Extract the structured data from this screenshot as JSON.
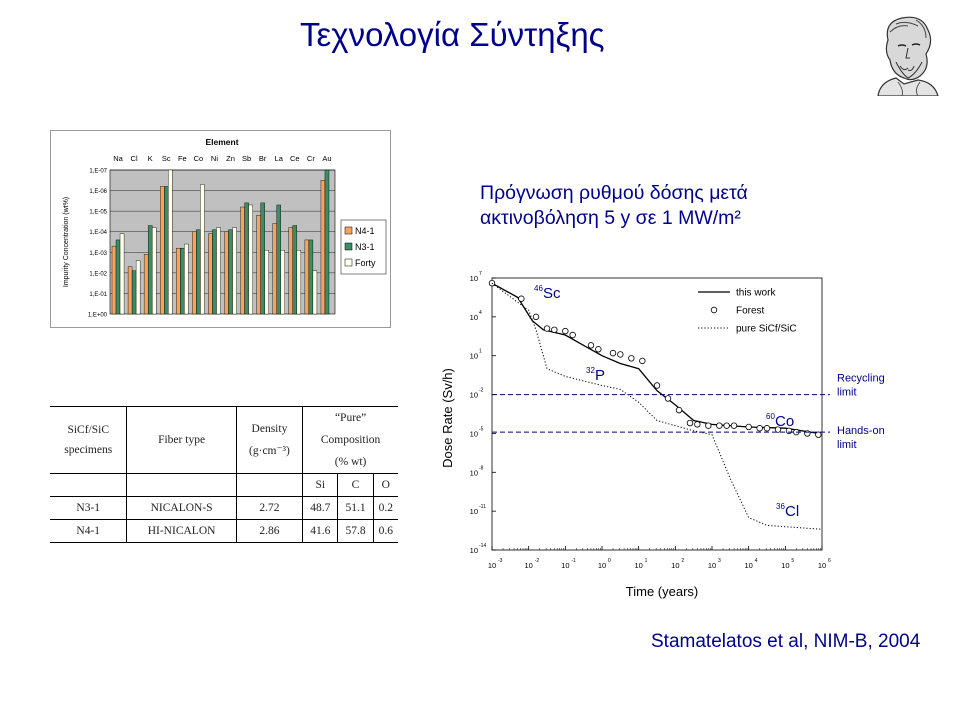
{
  "slide": {
    "title": "Τεχνολογία Σύντηξης",
    "dose_heading_line1": "Πρόγνωση ρυθμού δόσης μετά",
    "dose_heading_line2": "ακτινοβόληση 5 y σε 1 MW/m²",
    "citation": "Stamatelatos et al, NIM-B, 2004"
  },
  "table": {
    "header": {
      "specimens_line1": "SiCf/SiC",
      "specimens_line2": "specimens",
      "fiber_type": "Fiber type",
      "density_line1": "Density",
      "density_line2": "(g·cm⁻³)",
      "composition_line1": "“Pure”",
      "composition_line2": "Composition",
      "composition_line3": "(% wt)",
      "si": "Si",
      "c": "C",
      "o": "O"
    },
    "rows": [
      {
        "specimen": "N3-1",
        "fiber": "NICALON-S",
        "density": "2.72",
        "si": "48.7",
        "c": "51.1",
        "o": "0.2"
      },
      {
        "specimen": "N4-1",
        "fiber": "HI-NICALON",
        "density": "2.86",
        "si": "41.6",
        "c": "57.8",
        "o": "0.6"
      }
    ]
  },
  "chart_data": [
    {
      "type": "bar",
      "title": "Element",
      "ylabel": "Impurity Concentration (wt%)",
      "yscale": "log",
      "ylim_exponent": [
        0,
        7
      ],
      "ytick_labels": [
        "1,E+00",
        "1,E-01",
        "1,E-02",
        "1,E-03",
        "1,E-04",
        "1,E-05",
        "1,E-06",
        "1,E-07"
      ],
      "categories": [
        "Na",
        "Cl",
        "K",
        "Sc",
        "Fe",
        "Co",
        "Ni",
        "Zn",
        "Sb",
        "Br",
        "La",
        "Ce",
        "Cr",
        "Au"
      ],
      "series": [
        {
          "name": "N4-1",
          "color": "#F4A460",
          "log_values": [
            3.3,
            2.3,
            2.9,
            6.2,
            3.2,
            4.0,
            3.9,
            4.0,
            5.2,
            4.8,
            4.4,
            4.2,
            3.6,
            6.5
          ]
        },
        {
          "name": "N3-1",
          "color": "#3C8C64",
          "log_values": [
            3.6,
            2.1,
            4.3,
            6.2,
            3.2,
            4.1,
            4.1,
            4.1,
            5.4,
            5.4,
            5.3,
            4.3,
            3.6,
            7.0
          ]
        },
        {
          "name": "Forty",
          "color": "#FFFFEE",
          "log_values": [
            3.9,
            2.6,
            4.2,
            7.0,
            3.4,
            6.3,
            4.2,
            4.2,
            5.3,
            3.1,
            3.1,
            3.1,
            2.1,
            0
          ]
        }
      ],
      "legend": "right",
      "background": "#C0C0C0"
    },
    {
      "type": "line",
      "xlabel": "Time (years)",
      "ylabel": "Dose Rate (Sv/h)",
      "xscale": "log",
      "yscale": "log",
      "xlim_exponent": [
        -3,
        6
      ],
      "ylim_exponent": [
        -14,
        7
      ],
      "xtick_exponents": [
        -3,
        -2,
        -1,
        0,
        1,
        2,
        3,
        4,
        5,
        6
      ],
      "ytick_exponents": [
        7,
        4,
        1,
        -2,
        -5,
        -8,
        -11,
        -14
      ],
      "series": [
        {
          "name": "this work",
          "style": "solid",
          "log_x": [
            -3.0,
            -2.3,
            -1.9,
            -1.6,
            -1.0,
            -0.5,
            0.0,
            0.5,
            1.0,
            1.5,
            2.0,
            2.5,
            3.0,
            4.0,
            5.0,
            5.9
          ],
          "log_y": [
            6.6,
            5.5,
            3.7,
            3.0,
            2.6,
            1.8,
            1.0,
            0.4,
            0.0,
            -1.7,
            -2.8,
            -4.0,
            -4.3,
            -4.5,
            -4.6,
            -5.0
          ]
        },
        {
          "name": "Forest",
          "style": "markers",
          "log_x": [
            -3.0,
            -2.2,
            -1.8,
            -1.5,
            -1.3,
            -1.0,
            -0.8,
            -0.3,
            -0.1,
            0.3,
            0.5,
            0.8,
            1.1,
            1.5,
            1.8,
            2.1,
            2.4,
            2.6,
            2.9,
            3.2,
            3.4,
            3.6,
            4.0,
            4.3,
            4.5,
            4.8,
            5.1,
            5.3,
            5.6,
            5.9
          ],
          "log_y": [
            6.6,
            5.4,
            4.0,
            3.1,
            3.0,
            2.9,
            2.6,
            1.8,
            1.5,
            1.2,
            1.1,
            0.8,
            0.6,
            -1.3,
            -2.3,
            -3.2,
            -4.2,
            -4.3,
            -4.4,
            -4.4,
            -4.4,
            -4.4,
            -4.5,
            -4.6,
            -4.6,
            -4.7,
            -4.8,
            -4.9,
            -5.0,
            -5.1
          ]
        },
        {
          "name": "pure SiCf/SiC",
          "style": "dotted",
          "log_x": [
            -3.0,
            -2.0,
            -1.8,
            -1.5,
            -1.0,
            0.0,
            0.5,
            1.0,
            1.5,
            2.0,
            2.5,
            3.0,
            3.5,
            4.0,
            4.5,
            5.0,
            5.5,
            6.0
          ],
          "log_y": [
            6.6,
            4.5,
            3.0,
            0.0,
            -0.6,
            -1.3,
            -1.6,
            -2.6,
            -4.0,
            -4.4,
            -4.8,
            -5.1,
            -8.5,
            -11.5,
            -12.1,
            -12.2,
            -12.3,
            -12.4
          ]
        }
      ],
      "reference_lines": [
        {
          "log_y": -2.0,
          "label_line1": "Recycling",
          "label_line2": "limit"
        },
        {
          "log_y": -4.9,
          "label_line1": "Hands-on",
          "label_line2": "limit"
        }
      ],
      "annotations": [
        {
          "sup": "46",
          "text": "Sc"
        },
        {
          "sup": "32",
          "text": "P"
        },
        {
          "sup": "60",
          "text": "Co"
        },
        {
          "sup": "36",
          "text": "Cl"
        }
      ],
      "legend": "top-right"
    }
  ]
}
